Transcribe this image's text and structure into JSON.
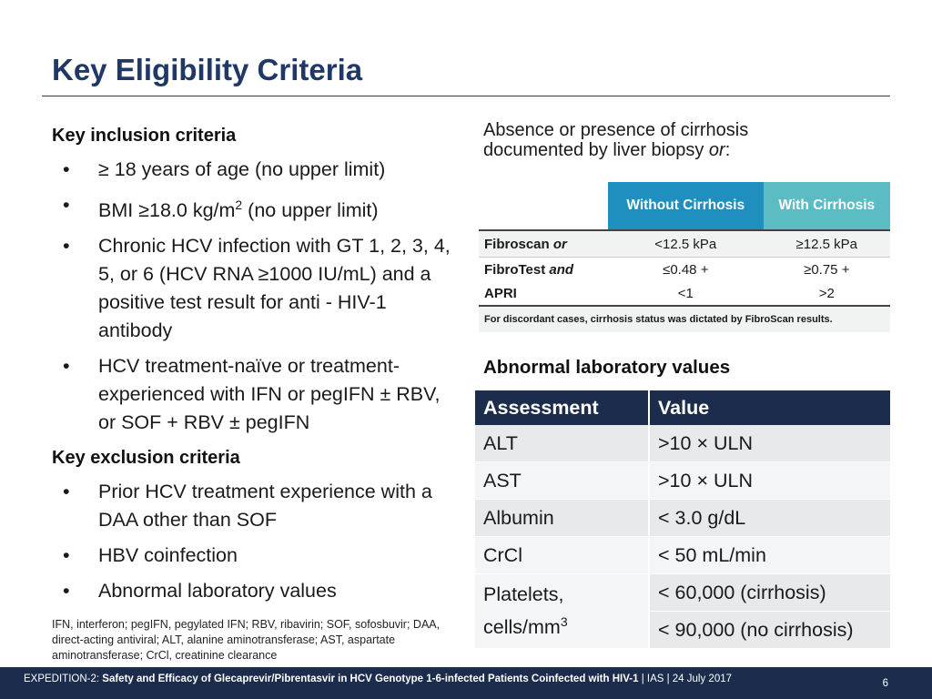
{
  "title": "Key Eligibility Criteria",
  "inclusion": {
    "heading": "Key inclusion criteria",
    "items": [
      "≥ 18 years of age (no upper limit)",
      "Chronic HCV infection with GT 1, 2, 3, 4, 5, or 6 (HCV RNA ≥1000 IU/mL) and a positive test result for anti - HIV-1 antibody",
      "HCV treatment-naïve or treatment-experienced with IFN or pegIFN ± RBV, or SOF + RBV ± pegIFN"
    ],
    "bmi": {
      "prefix": "BMI ≥18.0 kg/m",
      "sup": "2",
      "suffix": " (no upper limit)"
    }
  },
  "exclusion": {
    "heading": "Key exclusion criteria",
    "items": [
      "Prior HCV treatment experience with a DAA other than SOF",
      "HBV coinfection",
      "Abnormal laboratory values"
    ]
  },
  "footnote": "IFN, interferon; pegIFN, pegylated IFN; RBV, ribavirin; SOF, sofosbuvir; DAA, direct-acting antiviral; ALT, alanine aminotransferase; AST, aspartate aminotransferase; CrCl, creatinine clearance",
  "cirrhosis": {
    "intro_line1": "Absence or presence of cirrhosis",
    "intro_line2a": "documented by liver biopsy ",
    "intro_line2b": "or",
    "intro_line2c": ":",
    "col_without": "Without Cirrhosis",
    "col_with": "With Cirrhosis",
    "rows": [
      {
        "label": "Fibroscan",
        "conj": "or",
        "without": "<12.5 kPa",
        "with": "≥12.5 kPa"
      },
      {
        "label": "FibroTest",
        "conj": "and",
        "without": "≤0.48 +",
        "with": "≥0.75 +"
      },
      {
        "label": "APRI",
        "conj": "",
        "without": "<1",
        "with": ">2"
      }
    ],
    "note": "For discordant cases, cirrhosis status was dictated by FibroScan results."
  },
  "labs": {
    "heading": "Abnormal laboratory values",
    "col_assessment": "Assessment",
    "col_value": "Value",
    "rows": [
      {
        "assessment": "ALT",
        "value": ">10 × ULN"
      },
      {
        "assessment": "AST",
        "value": ">10 × ULN"
      },
      {
        "assessment": "Albumin",
        "value": "< 3.0 g/dL"
      },
      {
        "assessment": "CrCl",
        "value": "< 50 mL/min"
      }
    ],
    "platelets": {
      "label": "Platelets,",
      "unit_prefix": "cells/mm",
      "unit_sup": "3",
      "value_cirrhosis": "< 60,000 (cirrhosis)",
      "value_no_cirrhosis": "< 90,000 (no cirrhosis)"
    }
  },
  "footer": {
    "prefix": "EXPEDITION-2: ",
    "study": "Safety and Efficacy of Glecaprevir/Pibrentasvir in HCV Genotype 1-6-infected Patients Coinfected with HIV-1",
    "suffix": " | IAS | 24 July 2017",
    "page": "6"
  }
}
